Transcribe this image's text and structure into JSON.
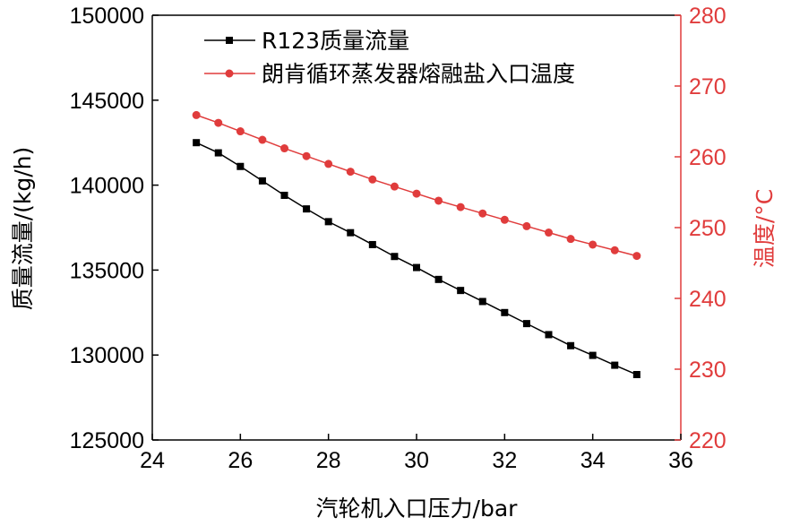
{
  "colors": {
    "series1": "#000000",
    "series2": "#e03c3c",
    "axis_left": "#000000",
    "axis_right": "#e03c3c"
  },
  "chart_data": {
    "type": "line",
    "title": "",
    "xlabel": "汽轮机入口压力/bar",
    "ylabel_left": "质量流量/(kg/h)",
    "ylabel_right": "温度/°C",
    "xlim": [
      24,
      36
    ],
    "ylim_left": [
      125000,
      150000
    ],
    "ylim_right": [
      220,
      280
    ],
    "x_ticks": [
      "24",
      "26",
      "28",
      "30",
      "32",
      "34",
      "36"
    ],
    "y_left_ticks": [
      "125000",
      "130000",
      "135000",
      "140000",
      "145000",
      "150000"
    ],
    "y_right_ticks": [
      "220",
      "230",
      "240",
      "250",
      "260",
      "270",
      "280"
    ],
    "grid": false,
    "legend_position": "top-left",
    "x": [
      25,
      25.5,
      26,
      26.5,
      27,
      27.5,
      28,
      28.5,
      29,
      29.5,
      30,
      30.5,
      31,
      31.5,
      32,
      32.5,
      33,
      33.5,
      34,
      34.5,
      35
    ],
    "series": [
      {
        "name": "R123质量流量",
        "axis": "left",
        "marker": "square",
        "values": [
          142500,
          141900,
          141100,
          140250,
          139400,
          138600,
          137850,
          137200,
          136500,
          135800,
          135150,
          134450,
          133800,
          133150,
          132500,
          131850,
          131200,
          130550,
          129980,
          129400,
          128850
        ]
      },
      {
        "name": "朗肯循环蒸发器熔融盐入口温度",
        "axis": "right",
        "marker": "circle",
        "values": [
          265.9,
          264.8,
          263.6,
          262.4,
          261.2,
          260.1,
          259.0,
          257.9,
          256.8,
          255.8,
          254.8,
          253.8,
          252.9,
          252.0,
          251.1,
          250.2,
          249.3,
          248.4,
          247.6,
          246.8,
          246.0
        ]
      }
    ]
  }
}
